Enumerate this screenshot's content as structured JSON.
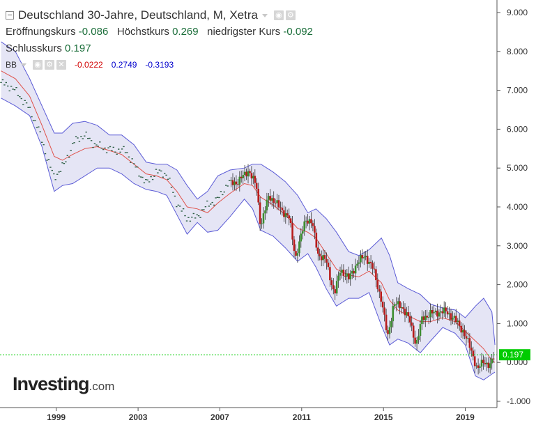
{
  "legend": {
    "title": "Deutschland 30-Jahre, Deutschland, M, Xetra",
    "open_label": "Eröffnungskurs",
    "open_value": "-0.086",
    "high_label": "Höchstkurs",
    "high_value": "0.269",
    "low_label": "niedrigster Kurs",
    "low_value": "-0.092",
    "close_label": "Schlusskurs",
    "close_value": "0.197",
    "bb_label": "BB",
    "bb_value_1": "-0.0222",
    "bb_value_2": "0.2749",
    "bb_value_3": "-0.3193"
  },
  "logo": {
    "name": "Investing",
    "suffix": ".com"
  },
  "colors": {
    "up": "#3c8d2f",
    "down": "#b81c1c",
    "band_line": "#5b5bd6",
    "band_fill": "#dcdcf2",
    "middle_line": "#e0524a",
    "price_line": "#00cc00",
    "dot_color": "#2f5f46"
  },
  "chart_data": {
    "type": "candlestick",
    "title": "Deutschland 30-Jahre, Deutschland, M, Xetra",
    "x_range": [
      1996.25,
      2020.55
    ],
    "ylim": [
      -1.0,
      9.0
    ],
    "y_ticks": [
      "9.000",
      "8.000",
      "7.000",
      "6.000",
      "5.000",
      "4.000",
      "3.000",
      "2.000",
      "1.000",
      "0.000",
      "-1.000"
    ],
    "x_ticks": [
      {
        "label": "1999",
        "value": 1999
      },
      {
        "label": "2003",
        "value": 2003
      },
      {
        "label": "2007",
        "value": 2007
      },
      {
        "label": "2011",
        "value": 2011
      },
      {
        "label": "2015",
        "value": 2015
      },
      {
        "label": "2019",
        "value": 2019
      }
    ],
    "last_price": 0.197,
    "last_price_label": "0.197",
    "grid": false,
    "close_path": [
      [
        1996.3,
        7.2
      ],
      [
        1996.9,
        7.05
      ],
      [
        1997.6,
        6.6
      ],
      [
        1998.1,
        6.05
      ],
      [
        1998.6,
        5.2
      ],
      [
        1998.9,
        4.75
      ],
      [
        1999.4,
        5.1
      ],
      [
        1999.9,
        5.7
      ],
      [
        2000.4,
        5.85
      ],
      [
        2000.9,
        5.6
      ],
      [
        2001.4,
        5.5
      ],
      [
        2001.9,
        5.45
      ],
      [
        2002.4,
        5.45
      ],
      [
        2002.9,
        5.0
      ],
      [
        2003.4,
        4.6
      ],
      [
        2003.9,
        4.9
      ],
      [
        2004.4,
        4.85
      ],
      [
        2004.9,
        4.1
      ],
      [
        2005.4,
        3.7
      ],
      [
        2005.9,
        3.75
      ],
      [
        2006.4,
        4.05
      ],
      [
        2006.9,
        4.2
      ],
      [
        2007.4,
        4.6
      ],
      [
        2007.9,
        4.65
      ],
      [
        2008.4,
        4.95
      ],
      [
        2008.8,
        4.5
      ],
      [
        2009.0,
        3.5
      ],
      [
        2009.4,
        4.3
      ],
      [
        2009.9,
        4.0
      ],
      [
        2010.4,
        3.7
      ],
      [
        2010.7,
        2.7
      ],
      [
        2010.9,
        3.1
      ],
      [
        2011.2,
        3.7
      ],
      [
        2011.5,
        3.6
      ],
      [
        2011.8,
        2.8
      ],
      [
        2012.2,
        2.6
      ],
      [
        2012.6,
        1.75
      ],
      [
        2012.9,
        2.4
      ],
      [
        2013.3,
        2.15
      ],
      [
        2013.7,
        2.55
      ],
      [
        2014.1,
        2.75
      ],
      [
        2014.5,
        2.4
      ],
      [
        2014.9,
        1.6
      ],
      [
        2015.2,
        0.65
      ],
      [
        2015.5,
        1.5
      ],
      [
        2015.9,
        1.45
      ],
      [
        2016.3,
        1.05
      ],
      [
        2016.6,
        0.45
      ],
      [
        2016.9,
        1.15
      ],
      [
        2017.3,
        1.25
      ],
      [
        2017.7,
        1.3
      ],
      [
        2018.1,
        1.3
      ],
      [
        2018.5,
        1.1
      ],
      [
        2018.9,
        0.8
      ],
      [
        2019.3,
        0.3
      ],
      [
        2019.6,
        -0.2
      ],
      [
        2019.9,
        0.05
      ],
      [
        2020.2,
        -0.1
      ],
      [
        2020.45,
        0.197
      ]
    ],
    "bollinger_upper": [
      [
        1996.3,
        8.25
      ],
      [
        1997.0,
        8.0
      ],
      [
        1997.7,
        7.3
      ],
      [
        1998.3,
        6.6
      ],
      [
        1998.9,
        5.9
      ],
      [
        1999.3,
        5.9
      ],
      [
        1999.8,
        6.15
      ],
      [
        2000.4,
        6.2
      ],
      [
        2001.0,
        6.1
      ],
      [
        2001.6,
        5.85
      ],
      [
        2002.2,
        5.85
      ],
      [
        2002.8,
        5.6
      ],
      [
        2003.4,
        5.15
      ],
      [
        2003.9,
        5.1
      ],
      [
        2004.4,
        5.1
      ],
      [
        2004.9,
        4.95
      ],
      [
        2005.4,
        4.55
      ],
      [
        2005.9,
        4.2
      ],
      [
        2006.4,
        4.4
      ],
      [
        2006.9,
        4.8
      ],
      [
        2007.5,
        4.95
      ],
      [
        2008.2,
        5.0
      ],
      [
        2008.6,
        5.1
      ],
      [
        2009.0,
        5.1
      ],
      [
        2009.6,
        4.9
      ],
      [
        2010.2,
        4.65
      ],
      [
        2010.8,
        4.3
      ],
      [
        2011.3,
        3.85
      ],
      [
        2011.7,
        3.95
      ],
      [
        2012.2,
        3.7
      ],
      [
        2012.7,
        3.35
      ],
      [
        2013.3,
        2.85
      ],
      [
        2013.8,
        2.75
      ],
      [
        2014.3,
        2.9
      ],
      [
        2014.9,
        3.2
      ],
      [
        2015.3,
        2.75
      ],
      [
        2015.7,
        2.05
      ],
      [
        2016.2,
        1.9
      ],
      [
        2016.8,
        1.75
      ],
      [
        2017.3,
        1.5
      ],
      [
        2017.9,
        1.4
      ],
      [
        2018.5,
        1.35
      ],
      [
        2019.0,
        1.15
      ],
      [
        2019.5,
        1.45
      ],
      [
        2019.9,
        1.65
      ],
      [
        2020.3,
        1.3
      ],
      [
        2020.45,
        0.45
      ]
    ],
    "bollinger_middle": [
      [
        1996.3,
        7.5
      ],
      [
        1997.0,
        7.3
      ],
      [
        1997.7,
        6.85
      ],
      [
        1998.3,
        6.1
      ],
      [
        1998.9,
        5.3
      ],
      [
        1999.3,
        5.2
      ],
      [
        1999.8,
        5.35
      ],
      [
        2000.4,
        5.5
      ],
      [
        2001.0,
        5.55
      ],
      [
        2001.6,
        5.45
      ],
      [
        2002.2,
        5.35
      ],
      [
        2002.8,
        5.1
      ],
      [
        2003.4,
        4.85
      ],
      [
        2003.9,
        4.8
      ],
      [
        2004.4,
        4.7
      ],
      [
        2004.9,
        4.4
      ],
      [
        2005.4,
        4.0
      ],
      [
        2005.9,
        3.95
      ],
      [
        2006.4,
        3.85
      ],
      [
        2006.9,
        4.1
      ],
      [
        2007.5,
        4.35
      ],
      [
        2008.2,
        4.6
      ],
      [
        2008.6,
        4.55
      ],
      [
        2009.0,
        4.25
      ],
      [
        2009.6,
        4.05
      ],
      [
        2010.2,
        3.8
      ],
      [
        2010.8,
        3.45
      ],
      [
        2011.3,
        3.35
      ],
      [
        2011.7,
        3.2
      ],
      [
        2012.2,
        2.8
      ],
      [
        2012.7,
        2.4
      ],
      [
        2013.3,
        2.25
      ],
      [
        2013.8,
        2.2
      ],
      [
        2014.3,
        2.35
      ],
      [
        2014.9,
        2.05
      ],
      [
        2015.3,
        1.6
      ],
      [
        2015.7,
        1.35
      ],
      [
        2016.2,
        1.2
      ],
      [
        2016.8,
        1.05
      ],
      [
        2017.3,
        1.05
      ],
      [
        2017.9,
        1.15
      ],
      [
        2018.5,
        1.05
      ],
      [
        2019.0,
        0.8
      ],
      [
        2019.5,
        0.55
      ],
      [
        2019.9,
        0.35
      ],
      [
        2020.3,
        0.05
      ],
      [
        2020.45,
        0.0
      ]
    ],
    "bollinger_lower": [
      [
        1996.3,
        6.8
      ],
      [
        1997.0,
        6.6
      ],
      [
        1997.7,
        6.35
      ],
      [
        1998.3,
        5.55
      ],
      [
        1998.9,
        4.4
      ],
      [
        1999.3,
        4.55
      ],
      [
        1999.8,
        4.6
      ],
      [
        2000.4,
        4.8
      ],
      [
        2001.0,
        5.0
      ],
      [
        2001.6,
        5.0
      ],
      [
        2002.2,
        4.85
      ],
      [
        2002.8,
        4.6
      ],
      [
        2003.4,
        4.45
      ],
      [
        2003.9,
        4.4
      ],
      [
        2004.4,
        4.3
      ],
      [
        2004.9,
        3.8
      ],
      [
        2005.4,
        3.3
      ],
      [
        2005.9,
        3.6
      ],
      [
        2006.4,
        3.35
      ],
      [
        2006.9,
        3.4
      ],
      [
        2007.5,
        3.75
      ],
      [
        2008.2,
        4.2
      ],
      [
        2008.6,
        3.95
      ],
      [
        2009.0,
        3.4
      ],
      [
        2009.6,
        3.25
      ],
      [
        2010.2,
        2.95
      ],
      [
        2010.8,
        2.6
      ],
      [
        2011.3,
        2.8
      ],
      [
        2011.7,
        2.45
      ],
      [
        2012.2,
        1.9
      ],
      [
        2012.7,
        1.45
      ],
      [
        2013.3,
        1.65
      ],
      [
        2013.8,
        1.65
      ],
      [
        2014.3,
        1.8
      ],
      [
        2014.9,
        0.95
      ],
      [
        2015.3,
        0.45
      ],
      [
        2015.7,
        0.6
      ],
      [
        2016.2,
        0.5
      ],
      [
        2016.8,
        0.25
      ],
      [
        2017.3,
        0.55
      ],
      [
        2017.9,
        0.9
      ],
      [
        2018.5,
        0.75
      ],
      [
        2019.0,
        0.45
      ],
      [
        2019.5,
        -0.35
      ],
      [
        2019.9,
        -0.45
      ],
      [
        2020.3,
        -0.3
      ],
      [
        2020.45,
        -0.25
      ]
    ],
    "candles_start": 2007.5
  }
}
